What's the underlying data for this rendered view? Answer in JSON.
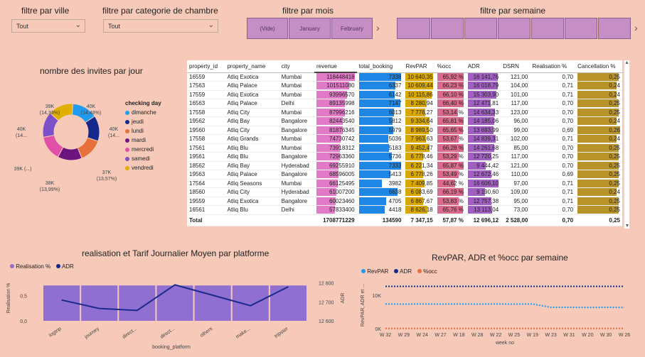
{
  "slicers": {
    "ville": {
      "title": "filtre par ville",
      "value": "Tout"
    },
    "chambre": {
      "title": "filtre par categorie de chambre",
      "value": "Tout"
    },
    "mois": {
      "title": "filtre par mois",
      "tiles": [
        "(Vide)",
        "January",
        "February"
      ]
    },
    "semaine": {
      "title": "filtre par semaine",
      "tiles": [
        "",
        "",
        "",
        "",
        "",
        "",
        ""
      ]
    }
  },
  "donut": {
    "title": "nombre des invites par jour",
    "legend_title": "checking day",
    "chart_data": {
      "type": "pie",
      "categories": [
        "dimanche",
        "jeudi",
        "lundi",
        "mardi",
        "mercredi",
        "samedi",
        "vendredi"
      ],
      "colors": [
        "#1f9bf0",
        "#14288c",
        "#e8703a",
        "#6c1580",
        "#e04fa8",
        "#7b50c8",
        "#e0b000"
      ],
      "values": [
        40,
        40,
        37,
        38,
        39,
        40,
        39
      ],
      "labels": [
        "40K\n(14,48%)",
        "40K\n(14...",
        "37K\n(13,57%)",
        "38K\n(13,99%)",
        "39K (...)",
        "40K\n(14...",
        "39K\n(14,33%)"
      ]
    }
  },
  "table": {
    "headers": [
      "property_id",
      "property_name",
      "city",
      "revenue",
      "total_booking",
      "RevPAR",
      "%occ",
      "ADR",
      "DSRN",
      "Realisation %",
      "Cancellation %"
    ],
    "rows": [
      [
        "16559",
        "Atliq Exotica",
        "Mumbai",
        "118448418",
        "7338",
        "10 640,35",
        "65,92 %",
        "16 141,76",
        "121,00",
        "0,70",
        "0,25"
      ],
      [
        "17563",
        "Atliq Palace",
        "Mumbai",
        "101511080",
        "6337",
        "10 609,44",
        "66,23 %",
        "16 018,79",
        "104,00",
        "0,71",
        "0,24"
      ],
      [
        "17559",
        "Atliq Exotica",
        "Mumbai",
        "93996570",
        "6142",
        "10 115,86",
        "66,10 %",
        "15 303,90",
        "101,00",
        "0,71",
        "0,24"
      ],
      [
        "16563",
        "Atliq Palace",
        "Delhi",
        "89135998",
        "7147",
        "8 280,94",
        "66,40 %",
        "12 471,81",
        "117,00",
        "0,70",
        "0,25"
      ],
      [
        "17558",
        "Atliq City",
        "Mumbai",
        "87996216",
        "6013",
        "7 776,27",
        "53,14 %",
        "14 634,33",
        "123,00",
        "0,70",
        "0,25"
      ],
      [
        "19562",
        "Atliq Bay",
        "Bangalore",
        "82443540",
        "5812",
        "9 334,64",
        "65,81 %",
        "14 185,06",
        "96,00",
        "0,70",
        "0,24"
      ],
      [
        "19560",
        "Atliq City",
        "Bangalore",
        "81876345",
        "5979",
        "8 989,50",
        "65,65 %",
        "13 693,99",
        "99,00",
        "0,69",
        "0,26"
      ],
      [
        "17558",
        "Atliq Grands",
        "Mumbai",
        "74730742",
        "5036",
        "7 963,63",
        "53,67 %",
        "14 839,31",
        "102,00",
        "0,71",
        "0,24"
      ],
      [
        "17561",
        "Atliq Blu",
        "Mumbai",
        "73918312",
        "5183",
        "9 452,47",
        "66,28 %",
        "14 261,68",
        "85,00",
        "0,70",
        "0,25"
      ],
      [
        "19561",
        "Atliq Blu",
        "Bangalore",
        "72963360",
        "5736",
        "6 778,46",
        "53,29 %",
        "12 720,25",
        "117,00",
        "0,70",
        "0,25"
      ],
      [
        "18562",
        "Atliq Bay",
        "Hyderabad",
        "69255910",
        "7333",
        "6 221,34",
        "65,87 %",
        "9 444,42",
        "121,00",
        "0,70",
        "0,25"
      ],
      [
        "19563",
        "Atliq Palace",
        "Bangalore",
        "68596005",
        "5413",
        "6 778,26",
        "53,49 %",
        "12 672,46",
        "110,00",
        "0,69",
        "0,25"
      ],
      [
        "17564",
        "Atliq Seasons",
        "Mumbai",
        "66125495",
        "3982",
        "7 409,85",
        "44,62 %",
        "16 606,10",
        "97,00",
        "0,71",
        "0,25"
      ],
      [
        "18560",
        "Atliq City",
        "Hyderabad",
        "61007200",
        "6638",
        "6 083,69",
        "66,19 %",
        "9 190,60",
        "109,00",
        "0,71",
        "0,24"
      ],
      [
        "19559",
        "Atliq Exotica",
        "Bangalore",
        "60023460",
        "4705",
        "6 867,67",
        "53,83 %",
        "12 757,38",
        "95,00",
        "0,71",
        "0,25"
      ],
      [
        "16561",
        "Atliq Blu",
        "Delhi",
        "57833400",
        "4418",
        "8 626,18",
        "65,76 %",
        "13 113,04",
        "73,00",
        "0,70",
        "0,25"
      ]
    ],
    "bar_fractions": {
      "revenue": [
        1.0,
        0.857,
        0.794,
        0.753,
        0.743,
        0.696,
        0.691,
        0.631,
        0.624,
        0.616,
        0.585,
        0.579,
        0.558,
        0.515,
        0.507,
        0.488
      ],
      "total_booking": [
        1.0,
        0.864,
        0.837,
        0.974,
        0.819,
        0.792,
        0.815,
        0.686,
        0.706,
        0.782,
        0.999,
        0.738,
        0.543,
        0.905,
        0.641,
        0.602
      ],
      "revpar": [
        1.0,
        0.997,
        0.951,
        0.778,
        0.731,
        0.877,
        0.845,
        0.748,
        0.888,
        0.637,
        0.585,
        0.637,
        0.696,
        0.572,
        0.645,
        0.811
      ],
      "occ": [
        0.995,
        1.0,
        0.998,
        1.0,
        0.8,
        0.991,
        0.989,
        0.808,
        0.998,
        0.803,
        0.992,
        0.806,
        0.672,
        0.997,
        0.811,
        0.99
      ],
      "adr": [
        0.972,
        0.965,
        0.922,
        0.751,
        0.881,
        0.854,
        0.825,
        0.894,
        0.859,
        0.766,
        0.569,
        0.763,
        1.0,
        0.553,
        0.768,
        0.79
      ],
      "cancel": [
        0.96,
        0.92,
        0.92,
        0.96,
        0.96,
        0.92,
        1.0,
        0.92,
        0.96,
        0.96,
        0.96,
        0.96,
        0.96,
        0.92,
        0.96,
        0.96
      ]
    },
    "totals": [
      "Total",
      "",
      "",
      "1708771229",
      "134590",
      "7 347,15",
      "57,87 %",
      "12 696,12",
      "2 528,00",
      "0,70",
      "0,25"
    ]
  },
  "combo": {
    "title": "realisation et Tarif Journalier Moyen par platforme",
    "legend": [
      "Realisation %",
      "ADR"
    ],
    "xlabel": "booking_platform",
    "ylabel_left": "Realisation %",
    "ylabel_right": "ADR",
    "left_ticks": [
      "0,5",
      "0,0"
    ],
    "right_ticks": [
      "12 800",
      "12 700",
      "12 600"
    ],
    "chart_data": {
      "type": "bar",
      "categories": [
        "logtrip",
        "journey",
        "direct...",
        "direct...",
        "others",
        "make...",
        "tripster"
      ],
      "series": [
        {
          "name": "Realisation %",
          "values": [
            0.7,
            0.7,
            0.7,
            0.7,
            0.7,
            0.7,
            0.7
          ]
        },
        {
          "name": "ADR",
          "values": [
            12710,
            12665,
            12655,
            12790,
            12735,
            12680,
            12780
          ]
        }
      ],
      "ylim_left": [
        0,
        0.9
      ],
      "ylim_right": [
        12600,
        12840
      ]
    }
  },
  "weekly": {
    "title": "RevPAR, ADR et %occ par semaine",
    "legend": [
      "RevPAR",
      "ADR",
      "%occ"
    ],
    "legend_colors": [
      "#1f9bf0",
      "#14288c",
      "#e8703a"
    ],
    "xlabel": "week no",
    "ylabel": "RevPAR, ADR et ...",
    "y_ticks": [
      "10K",
      "0K"
    ],
    "chart_data": {
      "type": "line",
      "x": [
        "W 32",
        "W 29",
        "W 24",
        "W 27",
        "W 18",
        "W 28",
        "W 22",
        "W 25",
        "W 19",
        "W 23",
        "W 31",
        "W 20",
        "W 30",
        "W 26"
      ],
      "series": [
        {
          "name": "RevPAR",
          "values": [
            7400,
            7350,
            7400,
            7350,
            7400,
            7350,
            7400,
            7350,
            7400,
            6400,
            6400,
            6350,
            6400,
            6350
          ]
        },
        {
          "name": "ADR",
          "values": [
            12700,
            12700,
            12700,
            12700,
            12700,
            12700,
            12700,
            12700,
            12700,
            12700,
            12700,
            12700,
            12700,
            12700
          ]
        },
        {
          "name": "%occ",
          "values": [
            58,
            58,
            58,
            58,
            58,
            58,
            58,
            58,
            58,
            58,
            58,
            58,
            58,
            58
          ]
        }
      ],
      "ylim": [
        0,
        14500
      ]
    }
  }
}
